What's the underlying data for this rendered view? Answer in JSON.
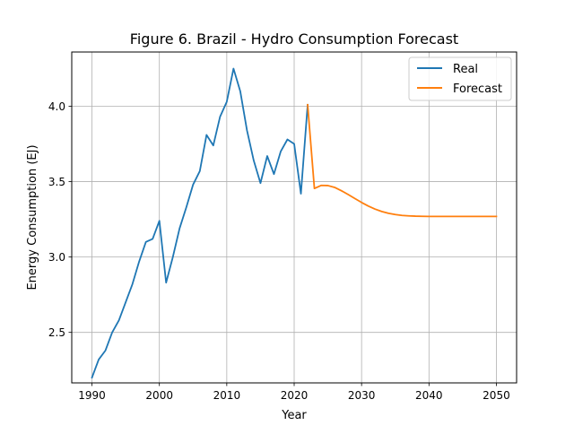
{
  "chart_data": {
    "type": "line",
    "title": "Figure 6. Brazil - Hydro Consumption Forecast",
    "xlabel": "Year",
    "ylabel": "Energy Consumption (EJ)",
    "xlim": [
      1987.0,
      2053.0
    ],
    "ylim": [
      2.165,
      4.36
    ],
    "xticks": [
      1990,
      2000,
      2010,
      2020,
      2030,
      2040,
      2050
    ],
    "yticks": [
      2.5,
      3.0,
      3.5,
      4.0
    ],
    "xtick_labels": [
      "1990",
      "2000",
      "2010",
      "2020",
      "2030",
      "2040",
      "2050"
    ],
    "ytick_labels": [
      "2.5",
      "3.0",
      "3.5",
      "4.0"
    ],
    "grid": true,
    "legend_position": "top-right",
    "series": [
      {
        "name": "Real",
        "color": "#1f77b4",
        "x": [
          1990,
          1991,
          1992,
          1993,
          1994,
          1995,
          1996,
          1997,
          1998,
          1999,
          2000,
          2001,
          2002,
          2003,
          2004,
          2005,
          2006,
          2007,
          2008,
          2009,
          2010,
          2011,
          2012,
          2013,
          2014,
          2015,
          2016,
          2017,
          2018,
          2019,
          2020,
          2021,
          2022
        ],
        "y": [
          2.2,
          2.32,
          2.38,
          2.5,
          2.58,
          2.7,
          2.82,
          2.97,
          3.1,
          3.12,
          3.24,
          2.83,
          3.0,
          3.19,
          3.33,
          3.48,
          3.57,
          3.81,
          3.74,
          3.93,
          4.03,
          4.25,
          4.1,
          3.84,
          3.64,
          3.49,
          3.67,
          3.55,
          3.7,
          3.78,
          3.75,
          3.42,
          4.01
        ]
      },
      {
        "name": "Forecast",
        "color": "#ff7f0e",
        "x": [
          2022,
          2023,
          2024,
          2025,
          2026,
          2027,
          2028,
          2029,
          2030,
          2031,
          2032,
          2033,
          2034,
          2035,
          2036,
          2037,
          2038,
          2039,
          2040,
          2041,
          2042,
          2043,
          2044,
          2045,
          2046,
          2047,
          2048,
          2049,
          2050
        ],
        "y": [
          4.01,
          3.455,
          3.475,
          3.474,
          3.462,
          3.44,
          3.415,
          3.388,
          3.362,
          3.338,
          3.318,
          3.302,
          3.29,
          3.282,
          3.276,
          3.273,
          3.271,
          3.27,
          3.269,
          3.269,
          3.269,
          3.269,
          3.269,
          3.269,
          3.269,
          3.269,
          3.269,
          3.269,
          3.269
        ]
      }
    ]
  }
}
